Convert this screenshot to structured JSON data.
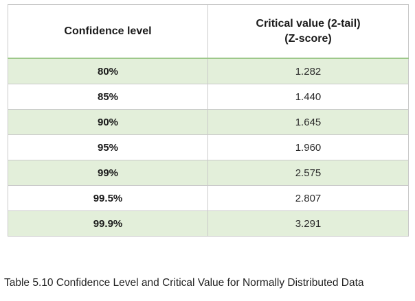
{
  "table": {
    "headers": {
      "level": "Confidence level",
      "critical_line1": "Critical value (2-tail)",
      "critical_line2": "(Z-score)"
    },
    "rows": [
      {
        "level": "80%",
        "value": "1.282"
      },
      {
        "level": "85%",
        "value": "1.440"
      },
      {
        "level": "90%",
        "value": "1.645"
      },
      {
        "level": "95%",
        "value": "1.960"
      },
      {
        "level": "99%",
        "value": "2.575"
      },
      {
        "level": "99.5%",
        "value": "2.807"
      },
      {
        "level": "99.9%",
        "value": "3.291"
      }
    ]
  },
  "caption": "Table 5.10 Confidence Level and Critical Value for Normally Distributed Data",
  "colors": {
    "row_shade": "#e3efda",
    "border": "#c8c8c8",
    "header_rule": "#9dc88a"
  }
}
